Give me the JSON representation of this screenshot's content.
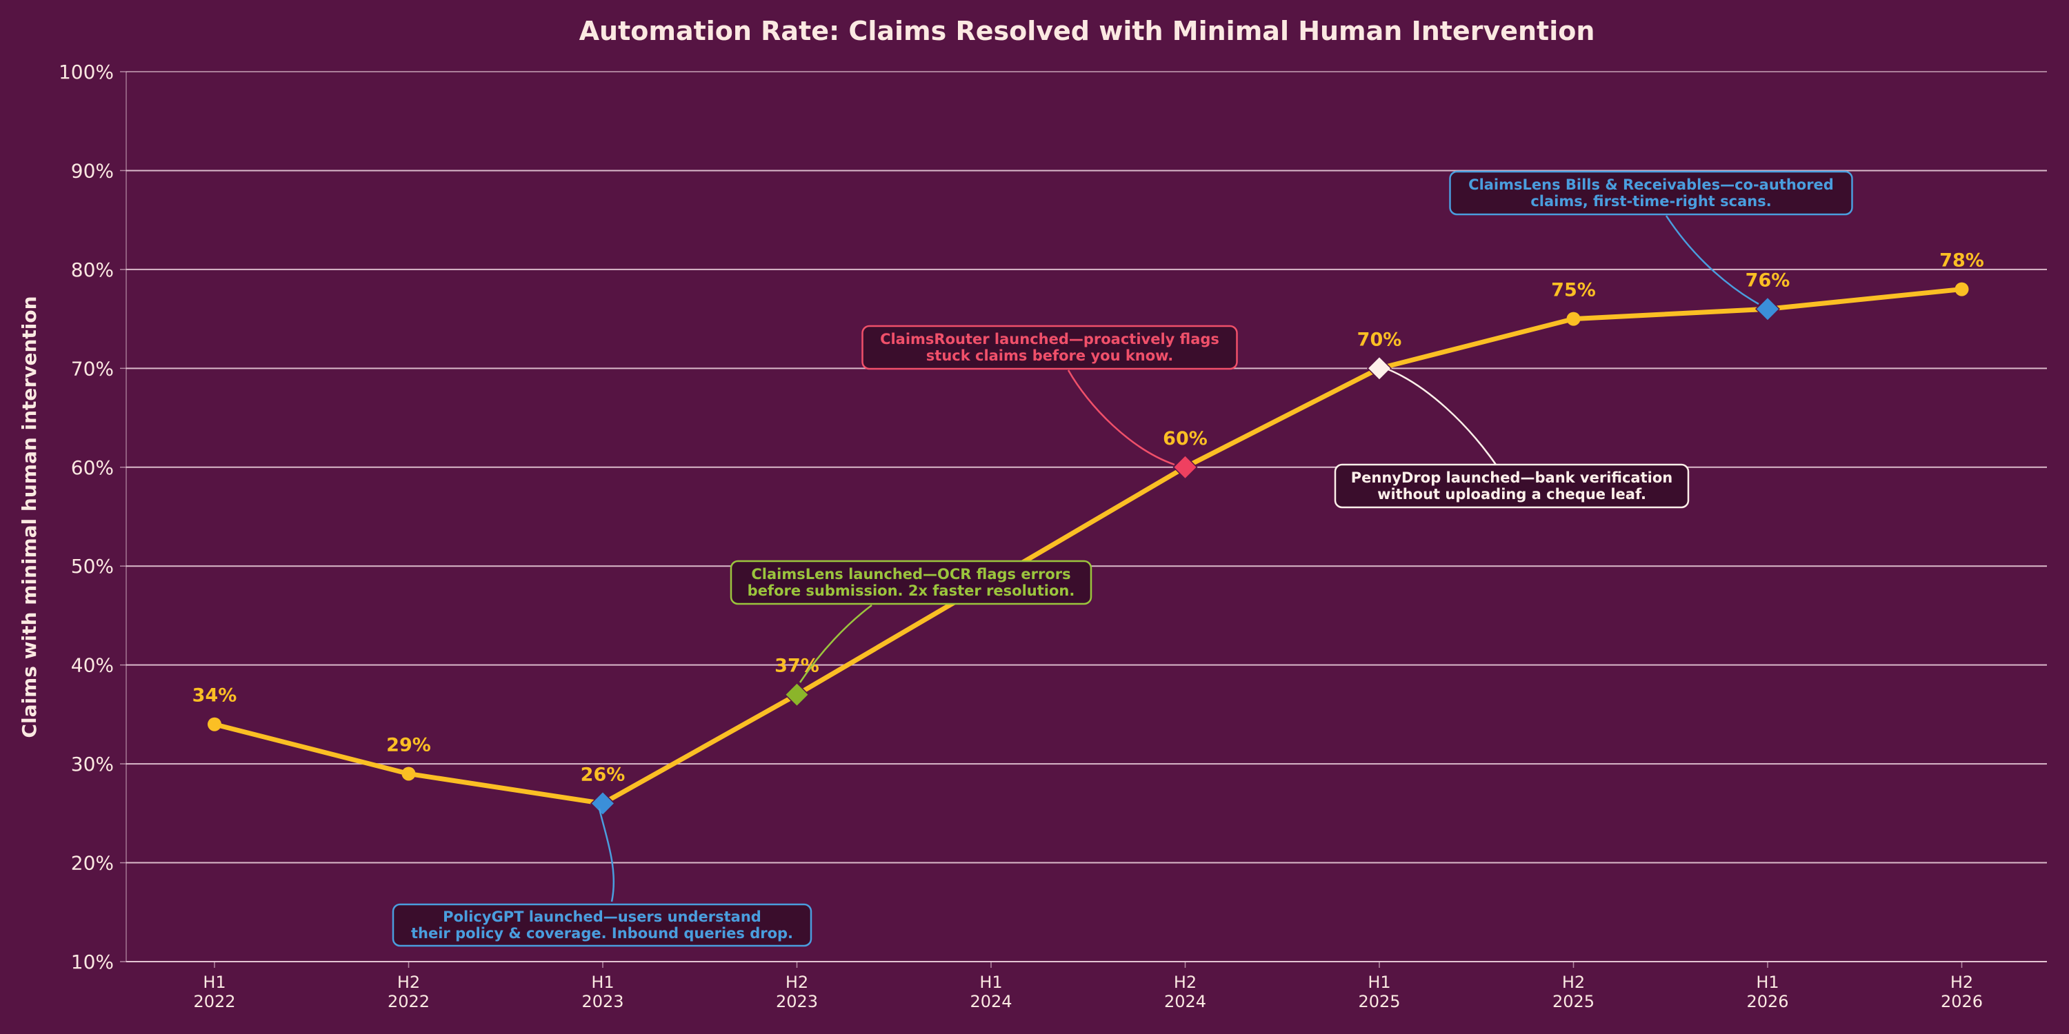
{
  "chart_data": {
    "type": "line",
    "title": "Automation Rate: Claims Resolved with Minimal Human Intervention",
    "xlabel": "",
    "ylabel": "Claims with minimal human intervention",
    "ylim": [
      10,
      100
    ],
    "y_ticks": [
      10,
      20,
      30,
      40,
      50,
      60,
      70,
      80,
      90,
      100
    ],
    "y_tick_suffix": "%",
    "grid": "horizontal",
    "categories": [
      [
        "H1",
        "2022"
      ],
      [
        "H2",
        "2022"
      ],
      [
        "H1",
        "2023"
      ],
      [
        "H2",
        "2023"
      ],
      [
        "H1",
        "2024"
      ],
      [
        "H2",
        "2024"
      ],
      [
        "H1",
        "2025"
      ],
      [
        "H2",
        "2025"
      ],
      [
        "H1",
        "2026"
      ],
      [
        "H2",
        "2026"
      ]
    ],
    "points": [
      {
        "x": "H1 2022",
        "y": 34,
        "label": "34%"
      },
      {
        "x": "H2 2022",
        "y": 29,
        "label": "29%"
      },
      {
        "x": "H1 2023",
        "y": 26,
        "label": "26%",
        "marker": "diamond",
        "marker_color": "#3b8fd9"
      },
      {
        "x": "H2 2023",
        "y": 37,
        "label": "37%",
        "marker": "diamond",
        "marker_color": "#8bb52a"
      },
      {
        "x": "H2 2024",
        "y": 60,
        "label": "60%",
        "marker": "diamond",
        "marker_color": "#ef4060"
      },
      {
        "x": "H1 2025",
        "y": 70,
        "label": "70%",
        "marker": "diamond",
        "marker_color": "#fdf0ea"
      },
      {
        "x": "H2 2025",
        "y": 75,
        "label": "75%"
      },
      {
        "x": "H1 2026",
        "y": 76,
        "label": "76%",
        "marker": "diamond",
        "marker_color": "#3b8fd9"
      },
      {
        "x": "H2 2026",
        "y": 78,
        "label": "78%"
      }
    ],
    "line_color": "#fbbf24",
    "annotations": [
      {
        "lines": [
          "PolicyGPT launched—users understand",
          "their policy & coverage. Inbound queries drop."
        ],
        "target": "H1 2023",
        "placement": "below",
        "color": "#4a9ede"
      },
      {
        "lines": [
          "ClaimsLens launched—OCR flags errors",
          "before submission. 2x faster resolution."
        ],
        "target": "H2 2023",
        "placement": "above-right",
        "color": "#9bc53d"
      },
      {
        "lines": [
          "ClaimsRouter launched—proactively flags",
          "stuck claims before you know."
        ],
        "target": "H2 2024",
        "placement": "above-left",
        "color": "#f0506a"
      },
      {
        "lines": [
          "PennyDrop launched—bank verification",
          "without uploading a cheque leaf."
        ],
        "target": "H1 2025",
        "placement": "below-right",
        "color": "#fdf0ea"
      },
      {
        "lines": [
          "ClaimsLens Bills & Receivables—co-authored",
          "claims, first-time-right scans."
        ],
        "target": "H1 2026",
        "placement": "above-left",
        "color": "#4a9ede"
      }
    ]
  },
  "colors": {
    "background": "#561443",
    "grid": "#f3d9e3",
    "text": "#fbe9e2",
    "annotation_box_fill": "#3a0d2c"
  }
}
